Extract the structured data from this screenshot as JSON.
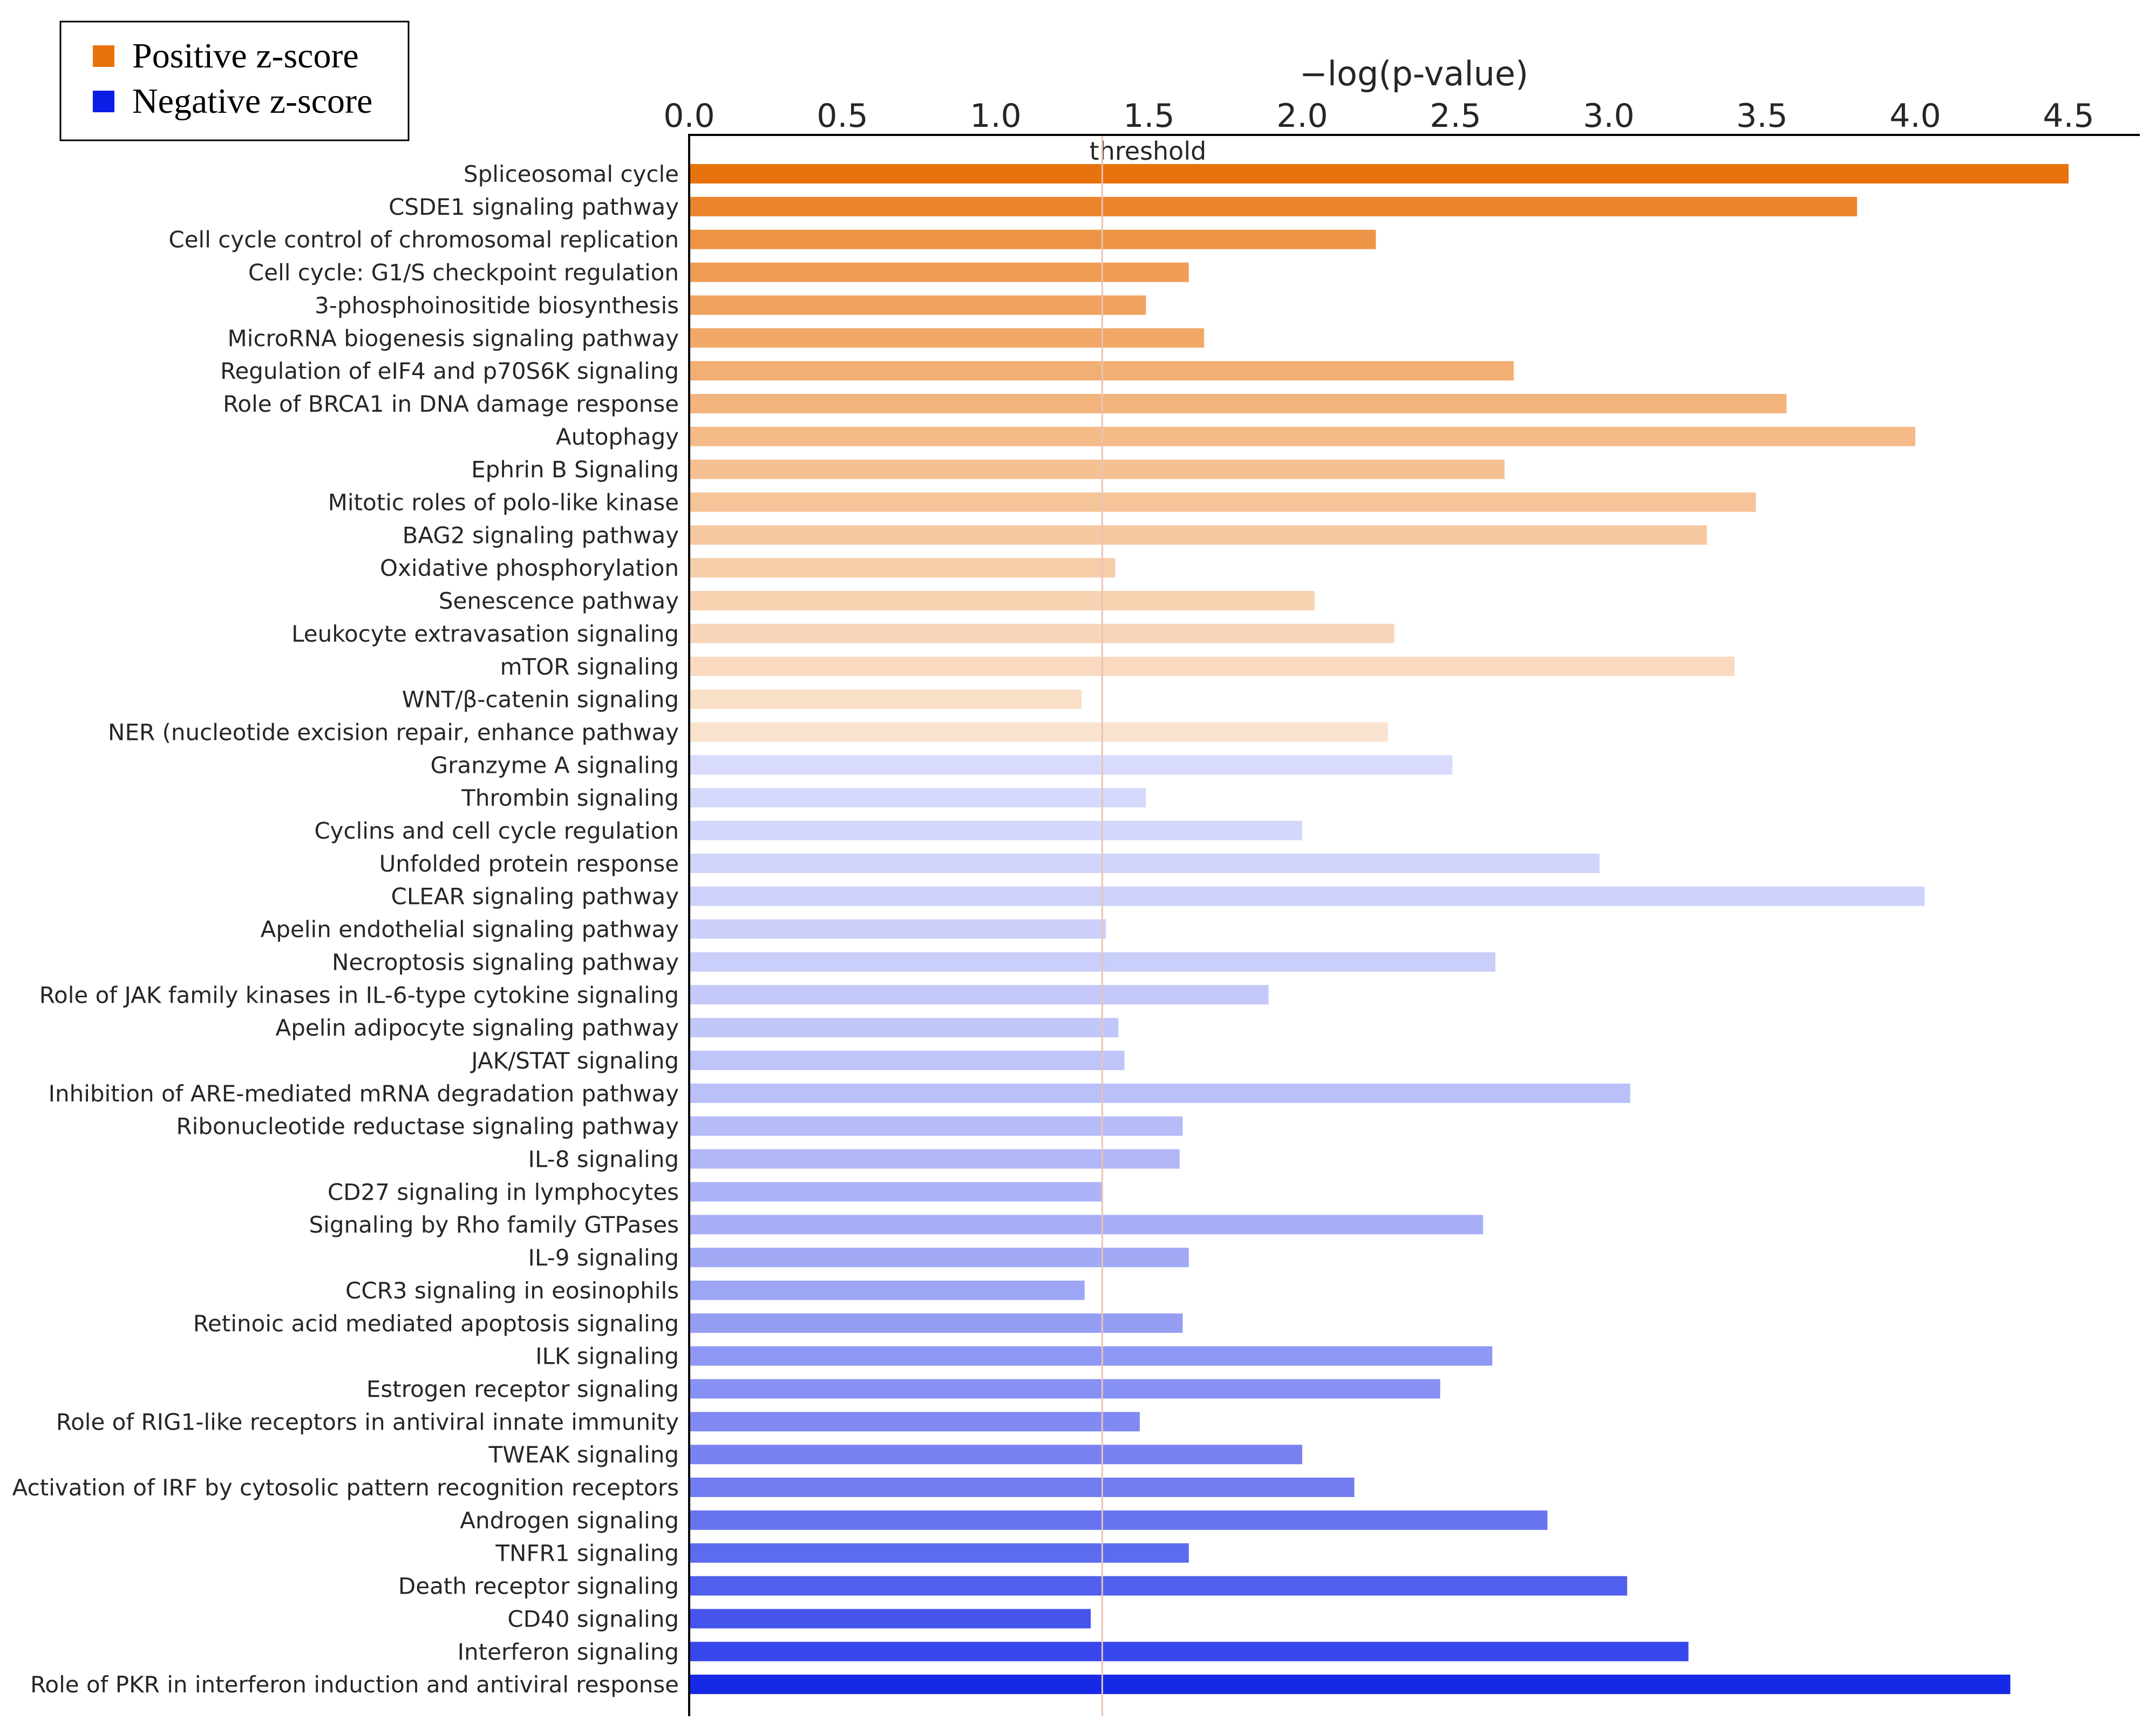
{
  "chart_data": {
    "type": "bar",
    "orientation": "horizontal",
    "title": "",
    "xlabel": "−log(p-value)",
    "ylabel": "",
    "xlim": [
      0,
      4.7
    ],
    "x_ticks": [
      "0.0",
      "0.5",
      "1.0",
      "1.5",
      "2.0",
      "2.5",
      "3.0",
      "3.5",
      "4.0",
      "4.5"
    ],
    "threshold": {
      "value": 1.3,
      "label": "threshold"
    },
    "legend": {
      "position": "top-left",
      "items": [
        {
          "label": "Positive z-score",
          "color": "#E8720C"
        },
        {
          "label": "Negative z-score",
          "color": "#0A1EE6"
        }
      ]
    },
    "colors": {
      "positive": "#E8720C",
      "negative": "#0A1EE6",
      "threshold_line": "#EBC3B4",
      "axis": "#000000"
    },
    "bars": [
      {
        "label": "Spliceosomal cycle",
        "value": 4.5,
        "z": "positive",
        "shade": 0.0
      },
      {
        "label": "CSDE1 signaling pathway",
        "value": 3.81,
        "z": "positive",
        "shade": 0.13
      },
      {
        "label": "Cell cycle control of chromosomal replication",
        "value": 2.24,
        "z": "positive",
        "shade": 0.24
      },
      {
        "label": "Cell cycle: G1/S checkpoint regulation",
        "value": 1.63,
        "z": "positive",
        "shade": 0.3
      },
      {
        "label": "3-phosphoinositide biosynthesis",
        "value": 1.49,
        "z": "positive",
        "shade": 0.34
      },
      {
        "label": "MicroRNA biogenesis signaling pathway",
        "value": 1.68,
        "z": "positive",
        "shade": 0.38
      },
      {
        "label": "Regulation of eIF4 and p70S6K signaling",
        "value": 2.69,
        "z": "positive",
        "shade": 0.43
      },
      {
        "label": "Role of BRCA1 in DNA damage response",
        "value": 3.58,
        "z": "positive",
        "shade": 0.47
      },
      {
        "label": "Autophagy",
        "value": 4.0,
        "z": "positive",
        "shade": 0.51
      },
      {
        "label": "Ephrin B Signaling",
        "value": 2.66,
        "z": "positive",
        "shade": 0.55
      },
      {
        "label": "Mitotic roles of polo-like kinase",
        "value": 3.48,
        "z": "positive",
        "shade": 0.58
      },
      {
        "label": "BAG2 signaling pathway",
        "value": 3.32,
        "z": "positive",
        "shade": 0.61
      },
      {
        "label": "Oxidative phosphorylation",
        "value": 1.39,
        "z": "positive",
        "shade": 0.65
      },
      {
        "label": "Senescence pathway",
        "value": 2.04,
        "z": "positive",
        "shade": 0.68
      },
      {
        "label": "Leukocyte extravasation signaling",
        "value": 2.3,
        "z": "positive",
        "shade": 0.71
      },
      {
        "label": "mTOR signaling",
        "value": 3.41,
        "z": "positive",
        "shade": 0.74
      },
      {
        "label": "WNT/β-catenin signaling",
        "value": 1.28,
        "z": "positive",
        "shade": 0.77
      },
      {
        "label": "NER (nucleotide excision repair, enhance pathway",
        "value": 2.28,
        "z": "positive",
        "shade": 0.8
      },
      {
        "label": "Granzyme A signaling",
        "value": 2.49,
        "z": "negative",
        "shade": 0.84
      },
      {
        "label": "Thrombin signaling",
        "value": 1.49,
        "z": "negative",
        "shade": 0.83
      },
      {
        "label": "Cyclins and cell cycle regulation",
        "value": 2.0,
        "z": "negative",
        "shade": 0.82
      },
      {
        "label": "Unfolded protein response",
        "value": 2.97,
        "z": "negative",
        "shade": 0.81
      },
      {
        "label": "CLEAR signaling pathway",
        "value": 4.03,
        "z": "negative",
        "shade": 0.8
      },
      {
        "label": "Apelin endothelial signaling pathway",
        "value": 1.36,
        "z": "negative",
        "shade": 0.79
      },
      {
        "label": "Necroptosis signaling pathway",
        "value": 2.63,
        "z": "negative",
        "shade": 0.78
      },
      {
        "label": "Role of JAK family kinases in IL-6-type cytokine signaling",
        "value": 1.89,
        "z": "negative",
        "shade": 0.76
      },
      {
        "label": "Apelin adipocyte signaling pathway",
        "value": 1.4,
        "z": "negative",
        "shade": 0.75
      },
      {
        "label": "JAK/STAT  signaling",
        "value": 1.42,
        "z": "negative",
        "shade": 0.74
      },
      {
        "label": "Inhibition of ARE-mediated  mRNA degradation pathway",
        "value": 3.07,
        "z": "negative",
        "shade": 0.72
      },
      {
        "label": "Ribonucleotide reductase signaling pathway",
        "value": 1.61,
        "z": "negative",
        "shade": 0.7
      },
      {
        "label": "IL-8 signaling",
        "value": 1.6,
        "z": "negative",
        "shade": 0.68
      },
      {
        "label": "CD27 signaling in lymphocytes",
        "value": 1.35,
        "z": "negative",
        "shade": 0.66
      },
      {
        "label": "Signaling by Rho family GTPases",
        "value": 2.59,
        "z": "negative",
        "shade": 0.64
      },
      {
        "label": "IL-9 signaling",
        "value": 1.63,
        "z": "negative",
        "shade": 0.62
      },
      {
        "label": "CCR3 signaling in eosinophils",
        "value": 1.29,
        "z": "negative",
        "shade": 0.6
      },
      {
        "label": "Retinoic acid mediated apoptosis signaling",
        "value": 1.61,
        "z": "negative",
        "shade": 0.57
      },
      {
        "label": "ILK signaling",
        "value": 2.62,
        "z": "negative",
        "shade": 0.54
      },
      {
        "label": "Estrogen receptor signaling",
        "value": 2.45,
        "z": "negative",
        "shade": 0.51
      },
      {
        "label": "Role of RIG1-like receptors in antiviral innate immunity",
        "value": 1.47,
        "z": "negative",
        "shade": 0.48
      },
      {
        "label": "TWEAK  signaling",
        "value": 2.0,
        "z": "negative",
        "shade": 0.45
      },
      {
        "label": "Activation of IRF by cytosolic pattern recognition receptors",
        "value": 2.17,
        "z": "negative",
        "shade": 0.42
      },
      {
        "label": "Androgen signaling",
        "value": 2.8,
        "z": "negative",
        "shade": 0.38
      },
      {
        "label": "TNFR1 signaling",
        "value": 1.63,
        "z": "negative",
        "shade": 0.34
      },
      {
        "label": "Death receptor signaling",
        "value": 3.06,
        "z": "negative",
        "shade": 0.29
      },
      {
        "label": "CD40 signaling",
        "value": 1.31,
        "z": "negative",
        "shade": 0.24
      },
      {
        "label": "Interferon signaling",
        "value": 3.26,
        "z": "negative",
        "shade": 0.18
      },
      {
        "label": "Role of PKR in interferon induction and antiviral response",
        "value": 4.31,
        "z": "negative",
        "shade": 0.05
      }
    ]
  }
}
